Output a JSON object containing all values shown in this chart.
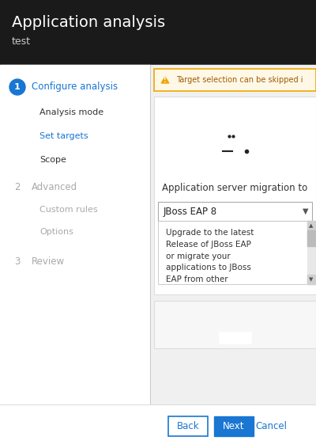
{
  "header_bg": "#1a1a1a",
  "header_title": "Application analysis",
  "header_subtitle": "test",
  "header_title_color": "#ffffff",
  "header_subtitle_color": "#cccccc",
  "header_title_fontsize": 14,
  "header_subtitle_fontsize": 9,
  "left_panel_bg": "#ffffff",
  "left_border_color": "#cccccc",
  "step1_num": "1",
  "step1_label": "Configure analysis",
  "step1_color": "#1976d2",
  "step1_bg": "#1976d2",
  "sub1a": "Analysis mode",
  "sub1b": "Set targets",
  "sub1c": "Scope",
  "step2_num": "2",
  "step2_label": "Advanced",
  "step2_color": "#aaaaaa",
  "sub2a": "Custom rules",
  "sub2b": "Options",
  "step3_num": "3",
  "step3_label": "Review",
  "step3_color": "#aaaaaa",
  "warning_bg": "#fff8e7",
  "warning_border": "#f0a500",
  "warning_text": "Target selection can be skipped i",
  "warning_icon_color": "#f0a500",
  "warning_text_color": "#a05c00",
  "card_bg": "#ffffff",
  "card_border": "#dddddd",
  "server_label": "Application server migration to",
  "dropdown_text": "JBoss EAP 8",
  "dropdown_bg": "#ffffff",
  "dropdown_border": "#aaaaaa",
  "desc_text": "Upgrade to the latest\nRelease of JBoss EAP\nor migrate your\napplications to JBoss\nEAP from other",
  "btn_back_label": "Back",
  "btn_back_bg": "#ffffff",
  "btn_back_border": "#1976d2",
  "btn_back_color": "#1976d2",
  "btn_next_label": "Next",
  "btn_next_bg": "#1976d2",
  "btn_next_color": "#ffffff",
  "btn_cancel_label": "Cancel",
  "btn_cancel_color": "#1976d2",
  "fig_width": 4.0,
  "fig_height": 5.66,
  "dpi": 100
}
